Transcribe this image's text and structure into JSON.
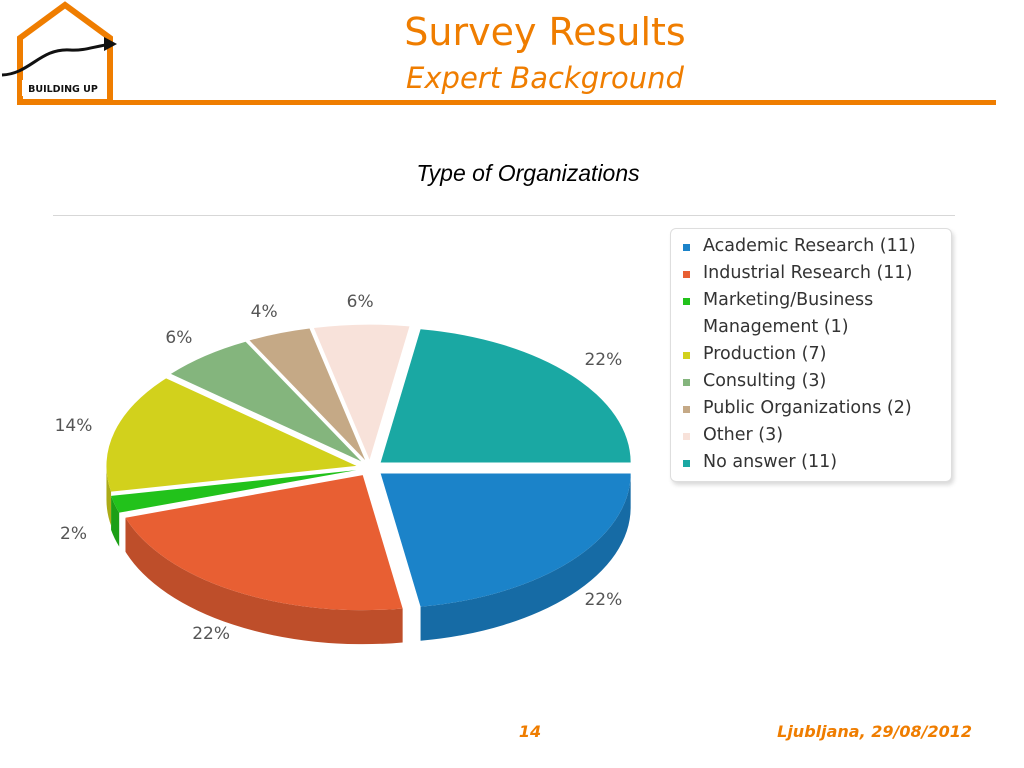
{
  "header": {
    "title": "Survey Results",
    "subtitle": "Expert Background",
    "logo_text": "BUILDING UP",
    "accent_color": "#ef7d00"
  },
  "footer": {
    "page_number": "14",
    "location_date": "Ljubljana, 29/08/2012"
  },
  "chart_data": {
    "type": "pie",
    "title": "Type of Organizations",
    "legend_position": "right",
    "series": [
      {
        "name": "Academic Research (11)",
        "value": 11,
        "percent_label": "22%",
        "color": "#1b83c9"
      },
      {
        "name": "Industrial Research (11)",
        "value": 11,
        "percent_label": "22%",
        "color": "#e85f33"
      },
      {
        "name": "Marketing/Business Management (1)",
        "value": 1,
        "percent_label": "2%",
        "color": "#22c21b"
      },
      {
        "name": "Production (7)",
        "value": 7,
        "percent_label": "14%",
        "color": "#d2d11c"
      },
      {
        "name": "Consulting (3)",
        "value": 3,
        "percent_label": "6%",
        "color": "#84b57d"
      },
      {
        "name": "Public Organizations (2)",
        "value": 2,
        "percent_label": "4%",
        "color": "#c5a986"
      },
      {
        "name": "Other (3)",
        "value": 3,
        "percent_label": "6%",
        "color": "#f8e2da"
      },
      {
        "name": "No answer (11)",
        "value": 11,
        "percent_label": "22%",
        "color": "#1aa8a3"
      }
    ]
  }
}
